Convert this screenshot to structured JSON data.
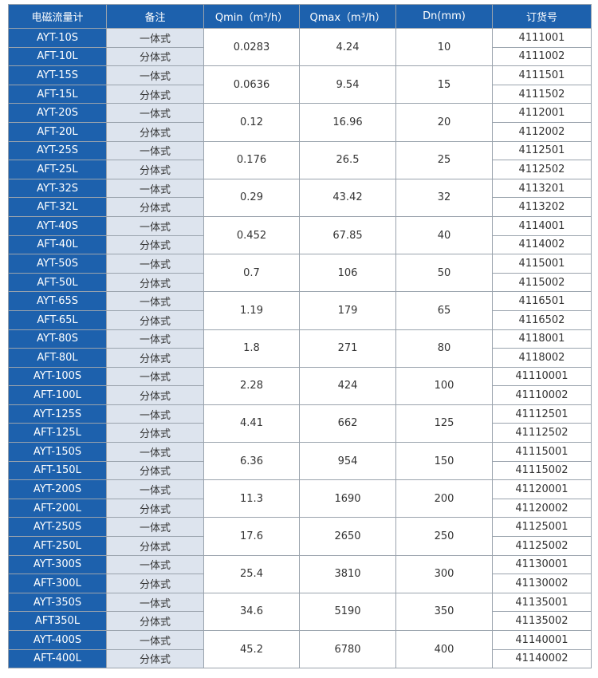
{
  "table": {
    "header": [
      "电磁流量计",
      "备注",
      "Qmin（m³/h）",
      "Qmax（m³/h）",
      "Dn(mm)",
      "订货号"
    ],
    "groups": [
      {
        "rows": [
          {
            "model": "AYT-10S",
            "note": "一体式",
            "code": "4111001"
          },
          {
            "model": "AFT-10L",
            "note": "分体式",
            "code": "4111002"
          }
        ],
        "qmin": "0.0283",
        "qmax": "4.24",
        "dn": "10"
      },
      {
        "rows": [
          {
            "model": "AYT-15S",
            "note": "一体式",
            "code": "4111501"
          },
          {
            "model": "AFT-15L",
            "note": "分体式",
            "code": "4111502"
          }
        ],
        "qmin": "0.0636",
        "qmax": "9.54",
        "dn": "15"
      },
      {
        "rows": [
          {
            "model": "AYT-20S",
            "note": "一体式",
            "code": "4112001"
          },
          {
            "model": "AFT-20L",
            "note": "分体式",
            "code": "4112002"
          }
        ],
        "qmin": "0.12",
        "qmax": "16.96",
        "dn": "20"
      },
      {
        "rows": [
          {
            "model": "AYT-25S",
            "note": "一体式",
            "code": "4112501"
          },
          {
            "model": "AFT-25L",
            "note": "分体式",
            "code": "4112502"
          }
        ],
        "qmin": "0.176",
        "qmax": "26.5",
        "dn": "25"
      },
      {
        "rows": [
          {
            "model": "AYT-32S",
            "note": "一体式",
            "code": "4113201"
          },
          {
            "model": "AFT-32L",
            "note": "分体式",
            "code": "4113202"
          }
        ],
        "qmin": "0.29",
        "qmax": "43.42",
        "dn": "32"
      },
      {
        "rows": [
          {
            "model": "AYT-40S",
            "note": "一体式",
            "code": "4114001"
          },
          {
            "model": "AFT-40L",
            "note": "分体式",
            "code": "4114002"
          }
        ],
        "qmin": "0.452",
        "qmax": "67.85",
        "dn": "40"
      },
      {
        "rows": [
          {
            "model": "AYT-50S",
            "note": "一体式",
            "code": "4115001"
          },
          {
            "model": "AFT-50L",
            "note": "分体式",
            "code": "4115002"
          }
        ],
        "qmin": "0.7",
        "qmax": "106",
        "dn": "50"
      },
      {
        "rows": [
          {
            "model": "AYT-65S",
            "note": "一体式",
            "code": "4116501"
          },
          {
            "model": "AFT-65L",
            "note": "分体式",
            "code": "4116502"
          }
        ],
        "qmin": "1.19",
        "qmax": "179",
        "dn": "65"
      },
      {
        "rows": [
          {
            "model": "AYT-80S",
            "note": "一体式",
            "code": "4118001"
          },
          {
            "model": "AFT-80L",
            "note": "分体式",
            "code": "4118002"
          }
        ],
        "qmin": "1.8",
        "qmax": "271",
        "dn": "80"
      },
      {
        "rows": [
          {
            "model": "AYT-100S",
            "note": "一体式",
            "code": "41110001"
          },
          {
            "model": "AFT-100L",
            "note": "分体式",
            "code": "41110002"
          }
        ],
        "qmin": "2.28",
        "qmax": "424",
        "dn": "100"
      },
      {
        "rows": [
          {
            "model": "AYT-125S",
            "note": "一体式",
            "code": "41112501"
          },
          {
            "model": "AFT-125L",
            "note": "分体式",
            "code": "41112502"
          }
        ],
        "qmin": "4.41",
        "qmax": "662",
        "dn": "125"
      },
      {
        "rows": [
          {
            "model": "AYT-150S",
            "note": "一体式",
            "code": "41115001"
          },
          {
            "model": "AFT-150L",
            "note": "分体式",
            "code": "41115002"
          }
        ],
        "qmin": "6.36",
        "qmax": "954",
        "dn": "150"
      },
      {
        "rows": [
          {
            "model": "AYT-200S",
            "note": "一体式",
            "code": "41120001"
          },
          {
            "model": "AFT-200L",
            "note": "分体式",
            "code": "41120002"
          }
        ],
        "qmin": "11.3",
        "qmax": "1690",
        "dn": "200"
      },
      {
        "rows": [
          {
            "model": "AYT-250S",
            "note": "一体式",
            "code": "41125001"
          },
          {
            "model": "AFT-250L",
            "note": "分体式",
            "code": "41125002"
          }
        ],
        "qmin": "17.6",
        "qmax": "2650",
        "dn": "250"
      },
      {
        "rows": [
          {
            "model": "AYT-300S",
            "note": "一体式",
            "code": "41130001"
          },
          {
            "model": "AFT-300L",
            "note": "分体式",
            "code": "41130002"
          }
        ],
        "qmin": "25.4",
        "qmax": "3810",
        "dn": "300"
      },
      {
        "rows": [
          {
            "model": "AYT-350S",
            "note": "一体式",
            "code": "41135001"
          },
          {
            "model": "AFT350L",
            "note": "分体式",
            "code": "41135002"
          }
        ],
        "qmin": "34.6",
        "qmax": "5190",
        "dn": "350"
      },
      {
        "rows": [
          {
            "model": "AYT-400S",
            "note": "一体式",
            "code": "41140001"
          },
          {
            "model": "AFT-400L",
            "note": "分体式",
            "code": "41140002"
          }
        ],
        "qmin": "45.2",
        "qmax": "6780",
        "dn": "400"
      }
    ]
  }
}
